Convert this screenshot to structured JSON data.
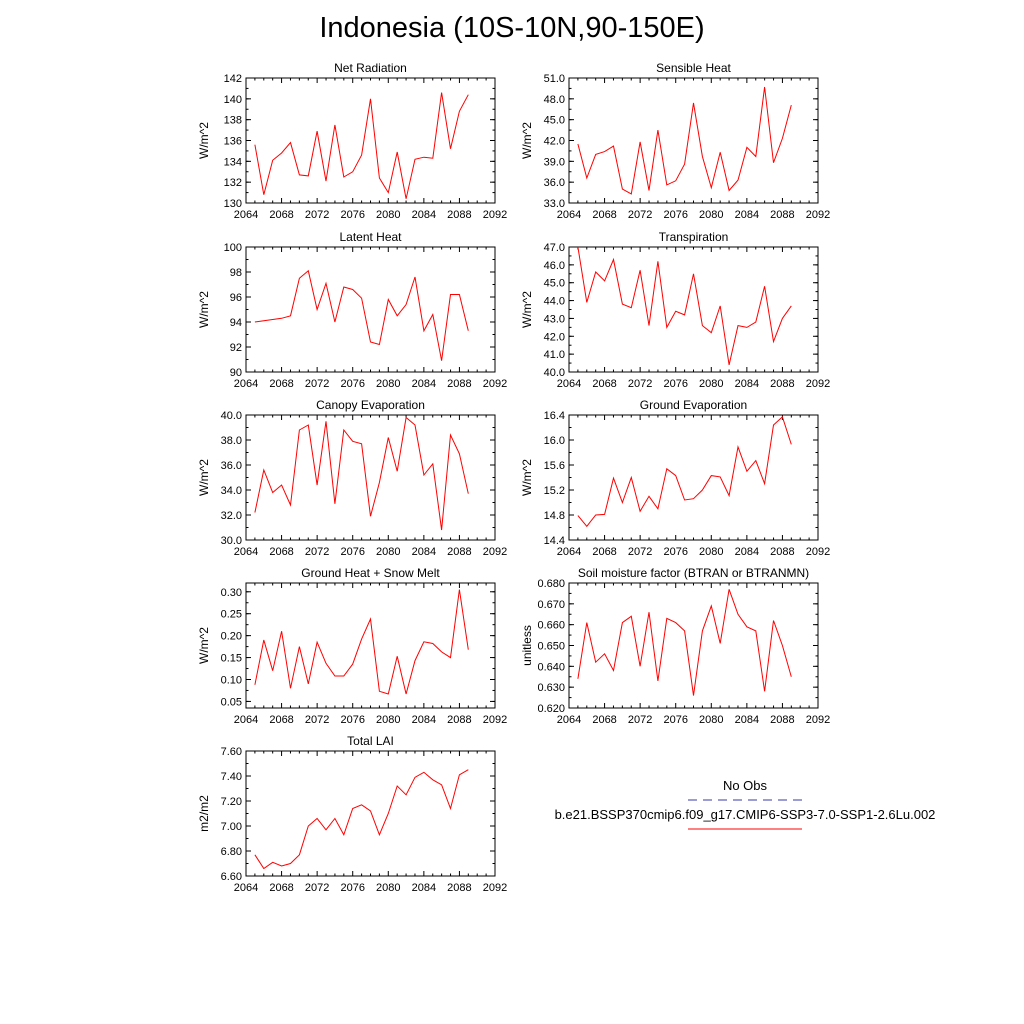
{
  "title": "Indonesia (10S-10N,90-150E)",
  "legend": {
    "entries": [
      {
        "label": "No Obs",
        "color": "#3a3aa8",
        "style": "dashed"
      },
      {
        "label": "b.e21.BSSP370cmip6.f09_g17.CMIP6-SSP3-7.0-SSP1-2.6Lu.002",
        "color": "#ff0000",
        "style": "solid"
      }
    ]
  },
  "chart_data": [
    {
      "type": "line",
      "title": "Net Radiation",
      "ylabel": "W/m^2",
      "xlim": [
        2064,
        2092
      ],
      "ylim": [
        130,
        142
      ],
      "xticks": [
        "2064",
        "2068",
        "2072",
        "2076",
        "2080",
        "2084",
        "2088",
        "2092"
      ],
      "yticks": [
        "130",
        "132",
        "134",
        "136",
        "138",
        "140",
        "142"
      ],
      "x": [
        2065,
        2066,
        2067,
        2068,
        2069,
        2070,
        2071,
        2072,
        2073,
        2074,
        2075,
        2076,
        2077,
        2078,
        2079,
        2080,
        2081,
        2082,
        2083,
        2084,
        2085,
        2086,
        2087,
        2088,
        2089
      ],
      "series": [
        {
          "color": "#ff0000",
          "values": [
            135.6,
            130.8,
            134.1,
            134.8,
            135.8,
            132.7,
            132.6,
            136.9,
            132.1,
            137.5,
            132.5,
            133.0,
            134.6,
            140.0,
            132.4,
            131.0,
            134.9,
            130.4,
            134.2,
            134.4,
            134.3,
            140.6,
            135.2,
            138.8,
            140.4
          ]
        }
      ]
    },
    {
      "type": "line",
      "title": "Sensible Heat",
      "ylabel": "W/m^2",
      "xlim": [
        2064,
        2092
      ],
      "ylim": [
        33,
        51
      ],
      "xticks": [
        "2064",
        "2068",
        "2072",
        "2076",
        "2080",
        "2084",
        "2088",
        "2092"
      ],
      "yticks": [
        "33.0",
        "36.0",
        "39.0",
        "42.0",
        "45.0",
        "48.0",
        "51.0"
      ],
      "x": [
        2065,
        2066,
        2067,
        2068,
        2069,
        2070,
        2071,
        2072,
        2073,
        2074,
        2075,
        2076,
        2077,
        2078,
        2079,
        2080,
        2081,
        2082,
        2083,
        2084,
        2085,
        2086,
        2087,
        2088,
        2089
      ],
      "series": [
        {
          "color": "#ff0000",
          "values": [
            41.5,
            36.6,
            40.0,
            40.4,
            41.2,
            35.0,
            34.3,
            41.8,
            34.8,
            43.5,
            35.6,
            36.2,
            38.6,
            47.4,
            39.7,
            35.2,
            40.3,
            34.8,
            36.3,
            41.0,
            39.7,
            49.7,
            38.8,
            42.3,
            47.1
          ]
        }
      ]
    },
    {
      "type": "line",
      "title": "Latent Heat",
      "ylabel": "W/m^2",
      "xlim": [
        2064,
        2092
      ],
      "ylim": [
        90,
        100
      ],
      "xticks": [
        "2064",
        "2068",
        "2072",
        "2076",
        "2080",
        "2084",
        "2088",
        "2092"
      ],
      "yticks": [
        "90",
        "92",
        "94",
        "96",
        "98",
        "100"
      ],
      "x": [
        2065,
        2066,
        2067,
        2068,
        2069,
        2070,
        2071,
        2072,
        2073,
        2074,
        2075,
        2076,
        2077,
        2078,
        2079,
        2080,
        2081,
        2082,
        2083,
        2084,
        2085,
        2086,
        2087,
        2088,
        2089
      ],
      "series": [
        {
          "color": "#ff0000",
          "values": [
            94.0,
            94.1,
            94.2,
            94.3,
            94.5,
            97.5,
            98.1,
            95.0,
            97.1,
            94.0,
            96.8,
            96.6,
            95.9,
            92.4,
            92.2,
            95.8,
            94.5,
            95.4,
            97.6,
            93.3,
            94.6,
            90.9,
            96.2,
            96.2,
            93.3
          ]
        }
      ]
    },
    {
      "type": "line",
      "title": "Transpiration",
      "ylabel": "W/m^2",
      "xlim": [
        2064,
        2092
      ],
      "ylim": [
        40,
        47
      ],
      "xticks": [
        "2064",
        "2068",
        "2072",
        "2076",
        "2080",
        "2084",
        "2088",
        "2092"
      ],
      "yticks": [
        "40.0",
        "41.0",
        "42.0",
        "43.0",
        "44.0",
        "45.0",
        "46.0",
        "47.0"
      ],
      "x": [
        2065,
        2066,
        2067,
        2068,
        2069,
        2070,
        2071,
        2072,
        2073,
        2074,
        2075,
        2076,
        2077,
        2078,
        2079,
        2080,
        2081,
        2082,
        2083,
        2084,
        2085,
        2086,
        2087,
        2088,
        2089
      ],
      "series": [
        {
          "color": "#ff0000",
          "values": [
            47.0,
            43.9,
            45.6,
            45.1,
            46.3,
            43.8,
            43.6,
            45.7,
            42.6,
            46.2,
            42.5,
            43.4,
            43.2,
            45.5,
            42.6,
            42.2,
            43.7,
            40.4,
            42.6,
            42.5,
            42.8,
            44.8,
            41.7,
            43.0,
            43.7
          ]
        }
      ]
    },
    {
      "type": "line",
      "title": "Canopy Evaporation",
      "ylabel": "W/m^2",
      "xlim": [
        2064,
        2092
      ],
      "ylim": [
        30,
        40
      ],
      "xticks": [
        "2064",
        "2068",
        "2072",
        "2076",
        "2080",
        "2084",
        "2088",
        "2092"
      ],
      "yticks": [
        "30.0",
        "32.0",
        "34.0",
        "36.0",
        "38.0",
        "40.0"
      ],
      "x": [
        2065,
        2066,
        2067,
        2068,
        2069,
        2070,
        2071,
        2072,
        2073,
        2074,
        2075,
        2076,
        2077,
        2078,
        2079,
        2080,
        2081,
        2082,
        2083,
        2084,
        2085,
        2086,
        2087,
        2088,
        2089
      ],
      "series": [
        {
          "color": "#ff0000",
          "values": [
            32.2,
            35.6,
            33.8,
            34.4,
            32.8,
            38.8,
            39.2,
            34.4,
            39.5,
            32.9,
            38.8,
            37.9,
            37.7,
            31.9,
            34.6,
            38.2,
            35.5,
            39.8,
            39.2,
            35.2,
            36.1,
            30.8,
            38.4,
            36.9,
            33.7
          ]
        }
      ]
    },
    {
      "type": "line",
      "title": "Ground Evaporation",
      "ylabel": "W/m^2",
      "xlim": [
        2064,
        2092
      ],
      "ylim": [
        14.4,
        16.4
      ],
      "xticks": [
        "2064",
        "2068",
        "2072",
        "2076",
        "2080",
        "2084",
        "2088",
        "2092"
      ],
      "yticks": [
        "14.4",
        "14.8",
        "15.2",
        "15.6",
        "16.0",
        "16.4"
      ],
      "x": [
        2065,
        2066,
        2067,
        2068,
        2069,
        2070,
        2071,
        2072,
        2073,
        2074,
        2075,
        2076,
        2077,
        2078,
        2079,
        2080,
        2081,
        2082,
        2083,
        2084,
        2085,
        2086,
        2087,
        2088,
        2089
      ],
      "series": [
        {
          "color": "#ff0000",
          "values": [
            14.79,
            14.62,
            14.8,
            14.81,
            15.39,
            15.0,
            15.4,
            14.86,
            15.1,
            14.9,
            15.54,
            15.43,
            15.04,
            15.06,
            15.2,
            15.43,
            15.41,
            15.11,
            15.89,
            15.5,
            15.67,
            15.3,
            16.24,
            16.37,
            15.93
          ]
        }
      ]
    },
    {
      "type": "line",
      "title": "Ground Heat + Snow Melt",
      "ylabel": "W/m^2",
      "xlim": [
        2064,
        2092
      ],
      "ylim": [
        0.035,
        0.32
      ],
      "xticks": [
        "2064",
        "2068",
        "2072",
        "2076",
        "2080",
        "2084",
        "2088",
        "2092"
      ],
      "yticks": [
        "0.05",
        "0.10",
        "0.15",
        "0.20",
        "0.25",
        "0.30"
      ],
      "x": [
        2065,
        2066,
        2067,
        2068,
        2069,
        2070,
        2071,
        2072,
        2073,
        2074,
        2075,
        2076,
        2077,
        2078,
        2079,
        2080,
        2081,
        2082,
        2083,
        2084,
        2085,
        2086,
        2087,
        2088,
        2089
      ],
      "series": [
        {
          "color": "#ff0000",
          "values": [
            0.088,
            0.19,
            0.12,
            0.21,
            0.08,
            0.175,
            0.09,
            0.185,
            0.137,
            0.108,
            0.108,
            0.135,
            0.192,
            0.238,
            0.073,
            0.067,
            0.153,
            0.067,
            0.143,
            0.186,
            0.182,
            0.163,
            0.15,
            0.305,
            0.168
          ]
        }
      ]
    },
    {
      "type": "line",
      "title": "Soil moisture factor (BTRAN or BTRANMN)",
      "ylabel": "unitless",
      "xlim": [
        2064,
        2092
      ],
      "ylim": [
        0.62,
        0.68
      ],
      "xticks": [
        "2064",
        "2068",
        "2072",
        "2076",
        "2080",
        "2084",
        "2088",
        "2092"
      ],
      "yticks": [
        "0.620",
        "0.630",
        "0.640",
        "0.650",
        "0.660",
        "0.670",
        "0.680"
      ],
      "x": [
        2065,
        2066,
        2067,
        2068,
        2069,
        2070,
        2071,
        2072,
        2073,
        2074,
        2075,
        2076,
        2077,
        2078,
        2079,
        2080,
        2081,
        2082,
        2083,
        2084,
        2085,
        2086,
        2087,
        2088,
        2089
      ],
      "series": [
        {
          "color": "#ff0000",
          "values": [
            0.634,
            0.661,
            0.642,
            0.646,
            0.638,
            0.661,
            0.664,
            0.64,
            0.666,
            0.633,
            0.663,
            0.661,
            0.657,
            0.626,
            0.657,
            0.669,
            0.651,
            0.677,
            0.665,
            0.659,
            0.657,
            0.628,
            0.662,
            0.65,
            0.635
          ]
        }
      ]
    },
    {
      "type": "line",
      "title": "Total LAI",
      "ylabel": "m2/m2",
      "xlim": [
        2064,
        2092
      ],
      "ylim": [
        6.6,
        7.6
      ],
      "xticks": [
        "2064",
        "2068",
        "2072",
        "2076",
        "2080",
        "2084",
        "2088",
        "2092"
      ],
      "yticks": [
        "6.60",
        "6.80",
        "7.00",
        "7.20",
        "7.40",
        "7.60"
      ],
      "x": [
        2065,
        2066,
        2067,
        2068,
        2069,
        2070,
        2071,
        2072,
        2073,
        2074,
        2075,
        2076,
        2077,
        2078,
        2079,
        2080,
        2081,
        2082,
        2083,
        2084,
        2085,
        2086,
        2087,
        2088,
        2089
      ],
      "series": [
        {
          "color": "#ff0000",
          "values": [
            6.77,
            6.66,
            6.71,
            6.68,
            6.7,
            6.77,
            7.0,
            7.06,
            6.97,
            7.06,
            6.93,
            7.14,
            7.17,
            7.12,
            6.93,
            7.1,
            7.32,
            7.25,
            7.39,
            7.43,
            7.37,
            7.33,
            7.14,
            7.41,
            7.45
          ]
        }
      ]
    }
  ]
}
